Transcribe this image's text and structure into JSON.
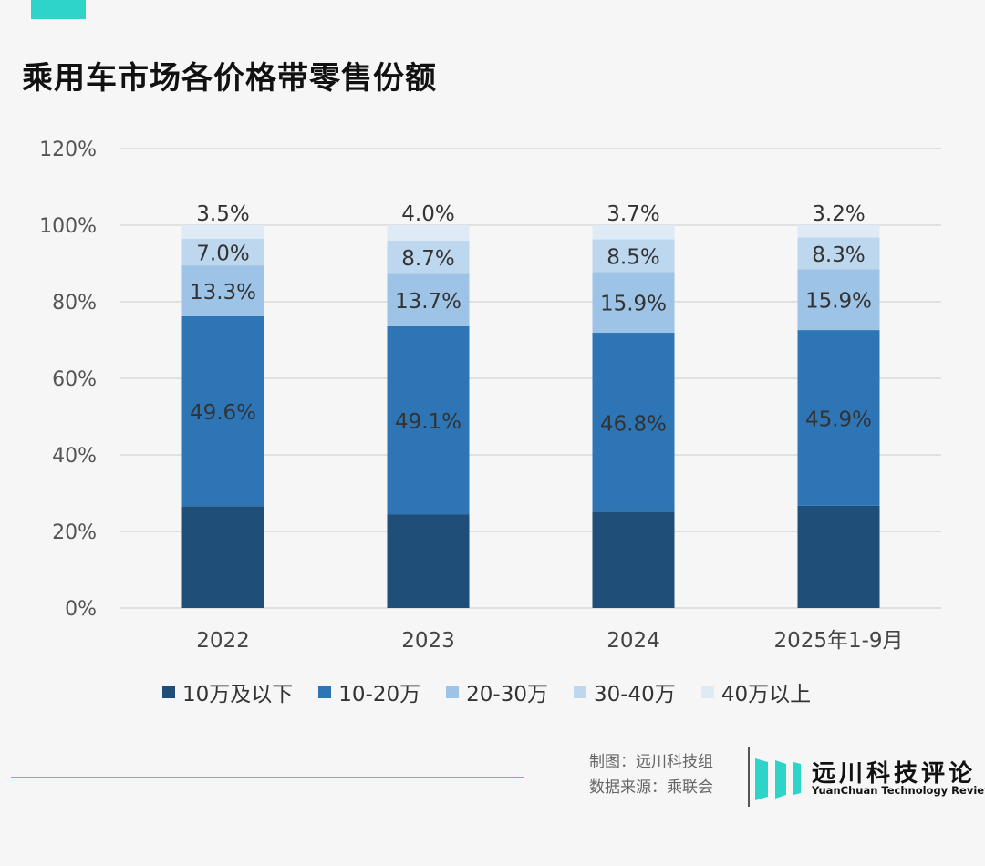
{
  "title": "乘用车市场各价格带零售份额",
  "chart_data": {
    "type": "bar",
    "stacked": true,
    "title": "乘用车市场各价格带零售份额",
    "categories": [
      "2022",
      "2023",
      "2024",
      "2025年1-9月"
    ],
    "ylim": [
      0,
      120
    ],
    "yticks": [
      "0%",
      "20%",
      "40%",
      "60%",
      "80%",
      "100%",
      "120%"
    ],
    "grid": true,
    "legend_position": "bottom",
    "series": [
      {
        "name": "10万及以下",
        "color": "#1f4e79",
        "values": [
          26.6,
          24.5,
          25.1,
          26.7
        ],
        "labels": [
          "",
          "",
          "",
          ""
        ]
      },
      {
        "name": "10-20万",
        "color": "#2e75b6",
        "values": [
          49.6,
          49.1,
          46.8,
          45.9
        ],
        "labels": [
          "49.6%",
          "49.1%",
          "46.8%",
          "45.9%"
        ]
      },
      {
        "name": "20-30万",
        "color": "#9dc3e6",
        "values": [
          13.3,
          13.7,
          15.9,
          15.9
        ],
        "labels": [
          "13.3%",
          "13.7%",
          "15.9%",
          "15.9%"
        ]
      },
      {
        "name": "30-40万",
        "color": "#bdd7ee",
        "values": [
          7.0,
          8.7,
          8.5,
          8.3
        ],
        "labels": [
          "7.0%",
          "8.7%",
          "8.5%",
          "8.3%"
        ]
      },
      {
        "name": "40万以上",
        "color": "#deebf7",
        "values": [
          3.5,
          4.0,
          3.7,
          3.2
        ],
        "labels": [
          "3.5%",
          "4.0%",
          "3.7%",
          "3.2%"
        ]
      }
    ]
  },
  "footer": {
    "credit": "制图：远川科技组",
    "source": "数据来源：乘联会",
    "logo_cn": "远川科技评论",
    "logo_en": "YuanChuan Technology Review"
  },
  "colors": {
    "accent": "#2fd4c8"
  }
}
